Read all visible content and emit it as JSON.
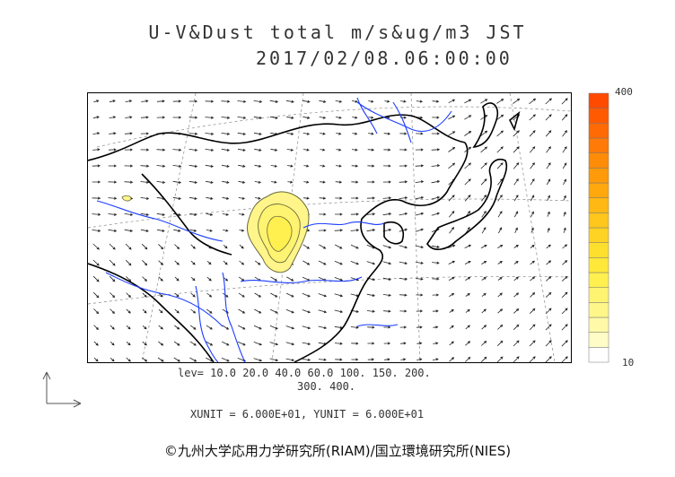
{
  "header": {
    "title": "U-V&Dust total m/s&ug/m3 JST",
    "datetime": "2017/02/08.06:00:00"
  },
  "colorbar": {
    "max_label": "400",
    "min_label": "10",
    "colors": [
      "#ffffff",
      "#fffcc8",
      "#fff9a8",
      "#fff68a",
      "#fff372",
      "#fff050",
      "#ffe83a",
      "#ffdf2e",
      "#ffd324",
      "#ffc61c",
      "#ffb814",
      "#ffa80e",
      "#ff9a0a",
      "#ff8c08",
      "#ff7a06",
      "#ff6a04",
      "#ff5a02",
      "#ff4a00"
    ]
  },
  "legend": {
    "levels_line1": "lev= 10.0 20.0 40.0 60.0 100. 150. 200.",
    "levels_line2": "300. 400.",
    "units": "XUNIT = 6.000E+01, YUNIT = 6.000E+01"
  },
  "footer": {
    "copyright": "©九州大学応用力学研究所(RIAM)/国立環境研究所(NIES)"
  },
  "colors": {
    "coast": "#000000",
    "rivers": "#1a3cff",
    "arrows": "#222222",
    "dust_fill": "#fff58a",
    "dust_contour": "#6a6a3a"
  }
}
